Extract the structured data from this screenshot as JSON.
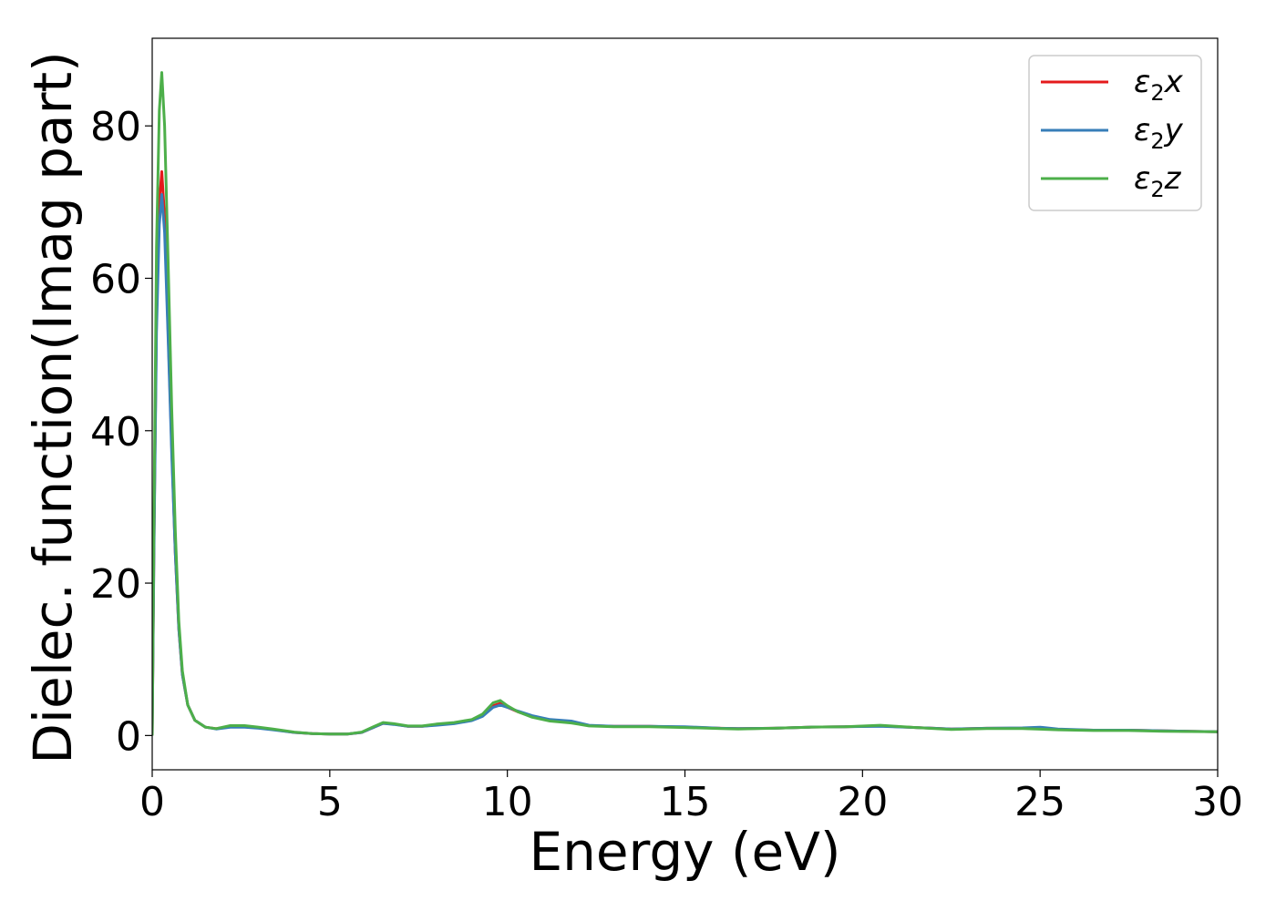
{
  "chart_data": {
    "type": "line",
    "title": "",
    "xlabel": "Energy (eV)",
    "ylabel": "Dielec. function(Imag part)",
    "xlim": [
      0,
      30
    ],
    "ylim": [
      -4.5,
      91.5
    ],
    "xticks": [
      0,
      5,
      10,
      15,
      20,
      25,
      30
    ],
    "yticks": [
      0,
      20,
      40,
      60,
      80
    ],
    "grid": false,
    "legend_position": "top-right",
    "series": [
      {
        "name": "ε2x",
        "legend": {
          "base": "ε",
          "sub": "2",
          "suffix": "x"
        },
        "color": "#e41a1c",
        "points": [
          [
            0,
            0
          ],
          [
            0.05,
            25
          ],
          [
            0.12,
            55
          ],
          [
            0.2,
            70
          ],
          [
            0.27,
            74
          ],
          [
            0.35,
            68
          ],
          [
            0.45,
            53
          ],
          [
            0.55,
            38
          ],
          [
            0.65,
            24
          ],
          [
            0.75,
            14
          ],
          [
            0.85,
            8
          ],
          [
            1.0,
            4
          ],
          [
            1.2,
            2
          ],
          [
            1.5,
            1.1
          ],
          [
            1.8,
            0.9
          ],
          [
            2.2,
            1.2
          ],
          [
            2.6,
            1.2
          ],
          [
            3.0,
            1.0
          ],
          [
            3.4,
            0.8
          ],
          [
            4.0,
            0.4
          ],
          [
            4.5,
            0.25
          ],
          [
            5.0,
            0.2
          ],
          [
            5.5,
            0.2
          ],
          [
            5.9,
            0.4
          ],
          [
            6.2,
            1.0
          ],
          [
            6.5,
            1.6
          ],
          [
            6.8,
            1.5
          ],
          [
            7.2,
            1.2
          ],
          [
            7.6,
            1.2
          ],
          [
            8.0,
            1.4
          ],
          [
            8.5,
            1.6
          ],
          [
            9.0,
            2.0
          ],
          [
            9.3,
            2.6
          ],
          [
            9.6,
            3.9
          ],
          [
            9.8,
            4.2
          ],
          [
            10.0,
            3.7
          ],
          [
            10.3,
            3.1
          ],
          [
            10.7,
            2.5
          ],
          [
            11.2,
            2.0
          ],
          [
            11.8,
            1.8
          ],
          [
            12.3,
            1.3
          ],
          [
            13.0,
            1.2
          ],
          [
            14.0,
            1.2
          ],
          [
            15.0,
            1.1
          ],
          [
            16.0,
            0.95
          ],
          [
            16.5,
            0.9
          ],
          [
            17.5,
            0.95
          ],
          [
            18.5,
            1.1
          ],
          [
            19.5,
            1.15
          ],
          [
            20.5,
            1.25
          ],
          [
            21.5,
            1.05
          ],
          [
            22.5,
            0.85
          ],
          [
            23.5,
            0.95
          ],
          [
            24.5,
            0.95
          ],
          [
            25.5,
            0.8
          ],
          [
            26.5,
            0.7
          ],
          [
            27.5,
            0.7
          ],
          [
            28.5,
            0.6
          ],
          [
            30.0,
            0.5
          ]
        ]
      },
      {
        "name": "ε2y",
        "legend": {
          "base": "ε",
          "sub": "2",
          "suffix": "y"
        },
        "color": "#377eb8",
        "points": [
          [
            0,
            0
          ],
          [
            0.05,
            24
          ],
          [
            0.12,
            53
          ],
          [
            0.2,
            67
          ],
          [
            0.27,
            71
          ],
          [
            0.35,
            66
          ],
          [
            0.45,
            52
          ],
          [
            0.55,
            37
          ],
          [
            0.65,
            24
          ],
          [
            0.75,
            14
          ],
          [
            0.85,
            8
          ],
          [
            1.0,
            4
          ],
          [
            1.2,
            2
          ],
          [
            1.5,
            1.1
          ],
          [
            1.8,
            0.85
          ],
          [
            2.2,
            1.1
          ],
          [
            2.6,
            1.1
          ],
          [
            3.0,
            0.95
          ],
          [
            3.4,
            0.75
          ],
          [
            4.0,
            0.4
          ],
          [
            4.5,
            0.25
          ],
          [
            5.0,
            0.2
          ],
          [
            5.5,
            0.2
          ],
          [
            5.9,
            0.4
          ],
          [
            6.2,
            1.0
          ],
          [
            6.5,
            1.6
          ],
          [
            6.8,
            1.45
          ],
          [
            7.2,
            1.2
          ],
          [
            7.6,
            1.2
          ],
          [
            8.0,
            1.35
          ],
          [
            8.5,
            1.55
          ],
          [
            9.0,
            1.95
          ],
          [
            9.3,
            2.5
          ],
          [
            9.6,
            3.7
          ],
          [
            9.8,
            4.0
          ],
          [
            10.0,
            3.7
          ],
          [
            10.3,
            3.2
          ],
          [
            10.7,
            2.6
          ],
          [
            11.2,
            2.1
          ],
          [
            11.8,
            1.9
          ],
          [
            12.3,
            1.35
          ],
          [
            13.0,
            1.2
          ],
          [
            14.0,
            1.2
          ],
          [
            15.0,
            1.15
          ],
          [
            16.0,
            0.95
          ],
          [
            16.5,
            0.9
          ],
          [
            17.5,
            0.95
          ],
          [
            18.5,
            1.1
          ],
          [
            19.5,
            1.15
          ],
          [
            20.5,
            1.2
          ],
          [
            21.5,
            1.05
          ],
          [
            22.5,
            0.85
          ],
          [
            23.5,
            0.95
          ],
          [
            24.5,
            1.0
          ],
          [
            25.0,
            1.1
          ],
          [
            25.5,
            0.85
          ],
          [
            26.5,
            0.7
          ],
          [
            27.5,
            0.7
          ],
          [
            28.5,
            0.6
          ],
          [
            30.0,
            0.5
          ]
        ]
      },
      {
        "name": "ε2z",
        "legend": {
          "base": "ε",
          "sub": "2",
          "suffix": "z"
        },
        "color": "#4daf4a",
        "points": [
          [
            0,
            0
          ],
          [
            0.05,
            28
          ],
          [
            0.12,
            64
          ],
          [
            0.2,
            82
          ],
          [
            0.27,
            87
          ],
          [
            0.35,
            80
          ],
          [
            0.45,
            62
          ],
          [
            0.55,
            43
          ],
          [
            0.65,
            27
          ],
          [
            0.75,
            15
          ],
          [
            0.85,
            8.5
          ],
          [
            1.0,
            4
          ],
          [
            1.2,
            2
          ],
          [
            1.5,
            1.1
          ],
          [
            1.8,
            0.9
          ],
          [
            2.2,
            1.3
          ],
          [
            2.6,
            1.3
          ],
          [
            3.0,
            1.1
          ],
          [
            3.4,
            0.85
          ],
          [
            4.0,
            0.45
          ],
          [
            4.5,
            0.25
          ],
          [
            5.0,
            0.2
          ],
          [
            5.5,
            0.2
          ],
          [
            5.9,
            0.45
          ],
          [
            6.2,
            1.1
          ],
          [
            6.5,
            1.7
          ],
          [
            6.8,
            1.55
          ],
          [
            7.2,
            1.25
          ],
          [
            7.6,
            1.25
          ],
          [
            8.0,
            1.5
          ],
          [
            8.5,
            1.7
          ],
          [
            9.0,
            2.1
          ],
          [
            9.3,
            2.8
          ],
          [
            9.6,
            4.3
          ],
          [
            9.8,
            4.6
          ],
          [
            10.0,
            3.9
          ],
          [
            10.3,
            3.1
          ],
          [
            10.7,
            2.4
          ],
          [
            11.2,
            1.9
          ],
          [
            11.8,
            1.65
          ],
          [
            12.3,
            1.25
          ],
          [
            13.0,
            1.15
          ],
          [
            14.0,
            1.15
          ],
          [
            15.0,
            1.05
          ],
          [
            16.0,
            0.9
          ],
          [
            16.5,
            0.85
          ],
          [
            17.5,
            0.95
          ],
          [
            18.5,
            1.1
          ],
          [
            19.5,
            1.15
          ],
          [
            20.5,
            1.35
          ],
          [
            21.5,
            1.05
          ],
          [
            22.5,
            0.8
          ],
          [
            23.5,
            0.9
          ],
          [
            24.5,
            0.9
          ],
          [
            25.5,
            0.75
          ],
          [
            26.5,
            0.65
          ],
          [
            27.5,
            0.65
          ],
          [
            28.5,
            0.55
          ],
          [
            30.0,
            0.5
          ]
        ]
      }
    ]
  }
}
